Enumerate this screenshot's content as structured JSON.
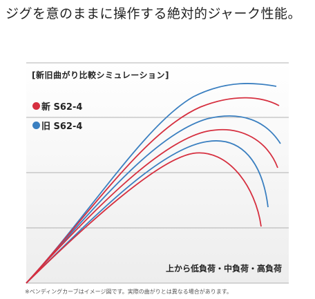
{
  "heading": "ジグを意のままに操作する絶対的ジャーク性能。",
  "footnote": "※ベンディングカーブはイメージ図です。実際の曲がりとは異なる場合があります。",
  "colors": {
    "new": "#d62f3f",
    "old": "#3a7fc0",
    "grid": "#999999"
  },
  "chart_data": {
    "type": "line",
    "title": "[新旧曲がり比較シミュレーション]",
    "annotation": "上から低負荷・中負荷・高負荷",
    "legend_placement": "top-left",
    "grid": "horizontal",
    "series": [
      {
        "name": "新 S62-4",
        "color": "#d62f3f"
      },
      {
        "name": "旧 S62-4",
        "color": "#3a7fc0"
      }
    ]
  }
}
